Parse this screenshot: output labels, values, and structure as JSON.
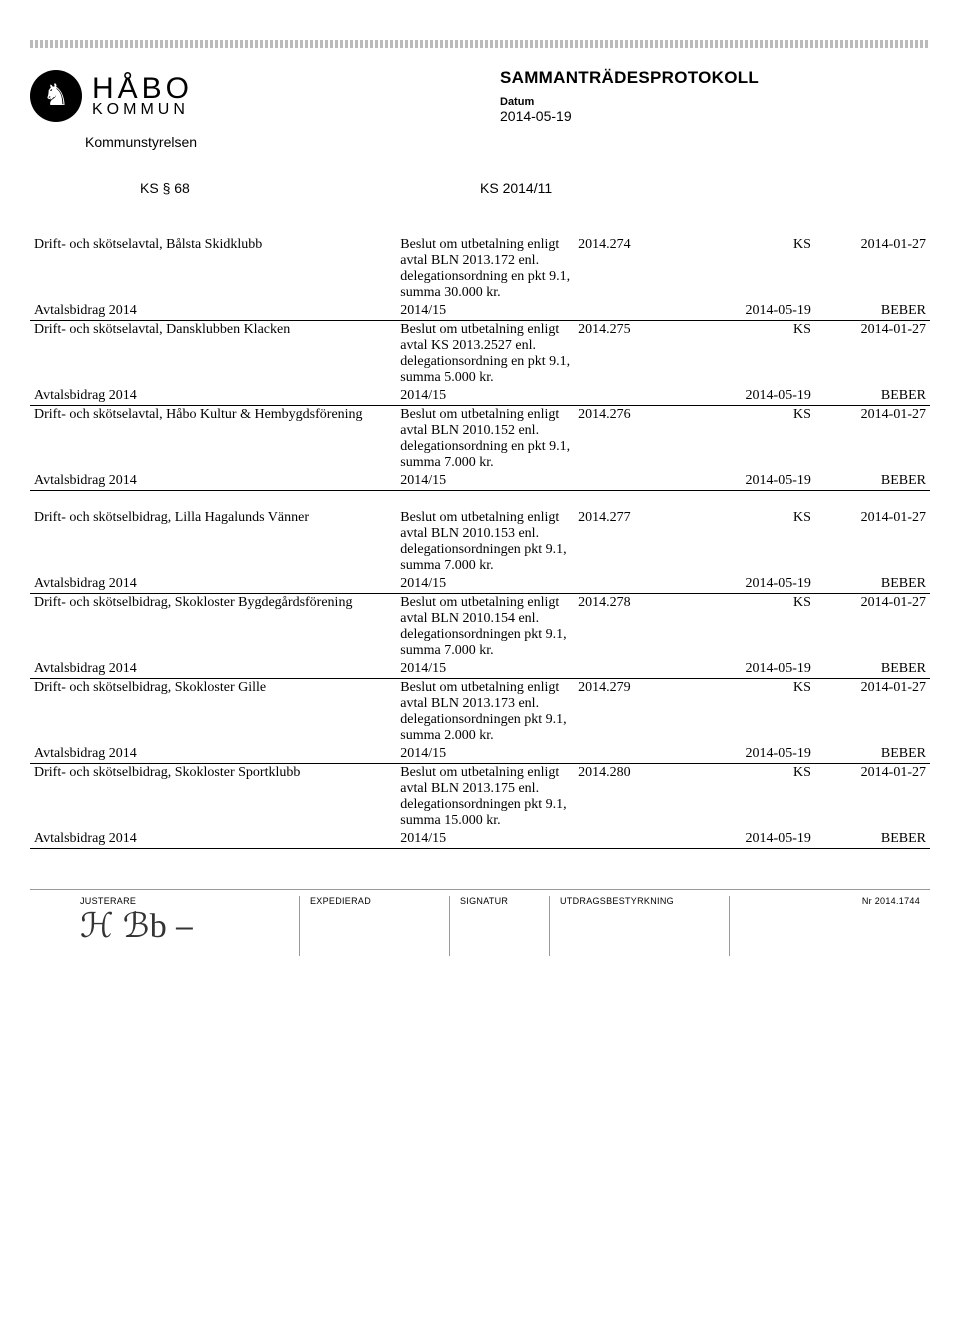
{
  "header": {
    "municipality_line1": "HÅBO",
    "municipality_line2": "KOMMUN",
    "board": "Kommunstyrelsen",
    "doc_title": "SAMMANTRÄDESPROTOKOLL",
    "datum_label": "Datum",
    "datum_value": "2014-05-19",
    "section_left": "KS § 68",
    "section_right": "KS 2014/11"
  },
  "rows": [
    {
      "arende": "Drift- och skötselavtal, Bålsta Skidklubb",
      "beslut": "Beslut om utbetalning enligt avtal BLN 2013.172 enl. delegationsordning en pkt 9.1, summa 30.000 kr.",
      "nr": "2014.274",
      "inst": "KS",
      "date": "2014-01-27",
      "sub_arende": "Avtalsbidrag 2014",
      "sub_beslut": "2014/15",
      "sub_inst": "2014-05-19",
      "sub_date": "BEBER"
    },
    {
      "arende": "Drift- och skötselavtal, Dansklubben Klacken",
      "beslut": "Beslut om utbetalning enligt avtal KS 2013.2527 enl. delegationsordning en pkt 9.1, summa 5.000 kr.",
      "nr": "2014.275",
      "inst": "KS",
      "date": "2014-01-27",
      "sub_arende": "Avtalsbidrag 2014",
      "sub_beslut": "2014/15",
      "sub_inst": "2014-05-19",
      "sub_date": "BEBER"
    },
    {
      "arende": "Drift- och skötselavtal, Håbo Kultur & Hembygdsförening",
      "beslut": "Beslut om utbetalning enligt avtal BLN 2010.152 enl. delegationsordning en pkt 9.1, summa 7.000 kr.",
      "nr": "2014.276",
      "inst": "KS",
      "date": "2014-01-27",
      "sub_arende": "Avtalsbidrag 2014",
      "sub_beslut": "2014/15",
      "sub_inst": "2014-05-19",
      "sub_date": "BEBER"
    },
    {
      "arende": "Drift- och skötselbidrag, Lilla Hagalunds Vänner",
      "beslut": "Beslut om utbetalning enligt avtal BLN 2010.153 enl. delegationsordningen pkt 9.1, summa 7.000 kr.",
      "nr": "2014.277",
      "inst": "KS",
      "date": "2014-01-27",
      "sub_arende": "Avtalsbidrag 2014",
      "sub_beslut": "2014/15",
      "sub_inst": "2014-05-19",
      "sub_date": "BEBER",
      "gap": true
    },
    {
      "arende": "Drift- och skötselbidrag, Skokloster Bygdegårdsförening",
      "beslut": "Beslut om utbetalning enligt avtal BLN 2010.154 enl. delegationsordningen pkt 9.1, summa 7.000 kr.",
      "nr": "2014.278",
      "inst": "KS",
      "date": "2014-01-27",
      "sub_arende": "Avtalsbidrag 2014",
      "sub_beslut": "2014/15",
      "sub_inst": "2014-05-19",
      "sub_date": "BEBER"
    },
    {
      "arende": "Drift- och skötselbidrag, Skokloster Gille",
      "beslut": "Beslut om utbetalning enligt avtal BLN 2013.173 enl. delegationsordningen pkt 9.1, summa 2.000 kr.",
      "nr": "2014.279",
      "inst": "KS",
      "date": "2014-01-27",
      "sub_arende": "Avtalsbidrag 2014",
      "sub_beslut": "2014/15",
      "sub_inst": "2014-05-19",
      "sub_date": "BEBER"
    },
    {
      "arende": "Drift- och skötselbidrag, Skokloster Sportklubb",
      "beslut": "Beslut om utbetalning enligt avtal BLN 2013.175 enl. delegationsordningen pkt 9.1, summa 15.000 kr.",
      "nr": "2014.280",
      "inst": "KS",
      "date": "2014-01-27",
      "sub_arende": "Avtalsbidrag 2014",
      "sub_beslut": "2014/15",
      "sub_inst": "2014-05-19",
      "sub_date": "BEBER"
    }
  ],
  "footer": {
    "justerare": "JUSTERARE",
    "expedierad": "EXPEDIERAD",
    "signatur": "SIGNATUR",
    "utdrag": "UTDRAGSBESTYRKNING",
    "nr": "Nr 2014.1744",
    "sig_text": "ℋ ℬb ⎯"
  }
}
